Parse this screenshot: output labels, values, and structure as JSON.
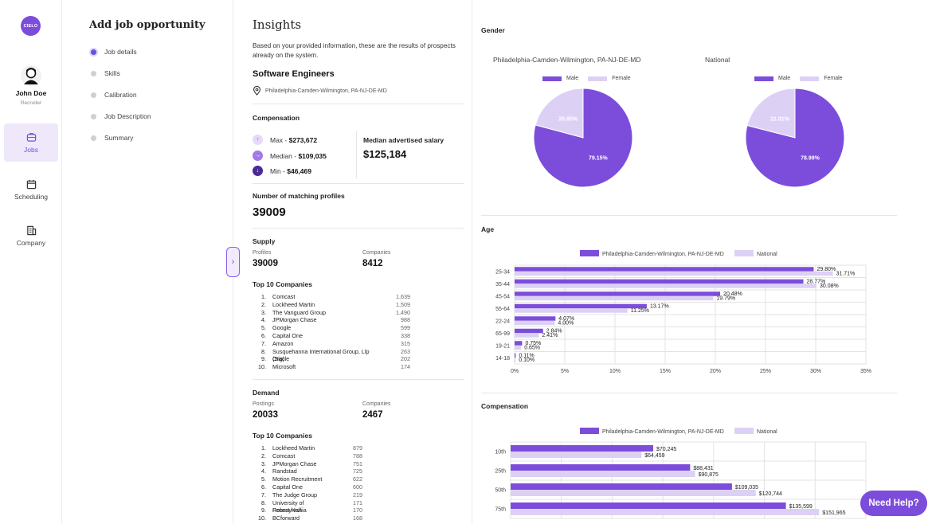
{
  "app": {
    "logo_text": "CIELO"
  },
  "user": {
    "name": "John Doe",
    "role": "Recruiter"
  },
  "nav": [
    {
      "label": "Jobs",
      "icon": "jobs-icon",
      "active": true
    },
    {
      "label": "Scheduling",
      "icon": "calendar-icon",
      "active": false
    },
    {
      "label": "Company",
      "icon": "building-icon",
      "active": false
    }
  ],
  "steps_panel": {
    "title": "Add job opportunity",
    "steps": [
      {
        "label": "Job details",
        "active": true
      },
      {
        "label": "Skills",
        "active": false
      },
      {
        "label": "Calibration",
        "active": false
      },
      {
        "label": "Job Description",
        "active": false
      },
      {
        "label": "Summary",
        "active": false
      }
    ]
  },
  "insights": {
    "title": "Insights",
    "description": "Based on your provided information, these are the results of prospects already on the system.",
    "job_title": "Software Engineers",
    "location": "Philadelphia-Camden-Wilmington, PA-NJ-DE-MD",
    "compensation": {
      "label": "Compensation",
      "max_label": "Max - ",
      "max_value": "$273,672",
      "median_label": "Median - ",
      "median_value": "$109,035",
      "min_label": "Min - ",
      "min_value": "$46,469",
      "median_adv_label": "Median advertised salary",
      "median_adv_value": "$125,184"
    },
    "matching": {
      "label": "Number of matching profiles",
      "value": "39009"
    },
    "supply": {
      "label": "Supply",
      "profiles_label": "Profiles",
      "profiles_value": "39009",
      "companies_label": "Companies",
      "companies_value": "8412",
      "top_label": "Top 10 Companies",
      "top": [
        {
          "n": "1.",
          "name": "Comcast",
          "count": "1,639"
        },
        {
          "n": "2.",
          "name": "Lockheed Martin",
          "count": "1,509"
        },
        {
          "n": "3.",
          "name": "The Vanguard Group",
          "count": "1,490"
        },
        {
          "n": "4.",
          "name": "JPMorgan Chase",
          "count": "988"
        },
        {
          "n": "5.",
          "name": "Google",
          "count": "599"
        },
        {
          "n": "6.",
          "name": "Capital One",
          "count": "338"
        },
        {
          "n": "7.",
          "name": "Amazon",
          "count": "315"
        },
        {
          "n": "8.",
          "name": "Susquehanna International Group, Llp (Sig)",
          "count": "263"
        },
        {
          "n": "9.",
          "name": "Oracle",
          "count": "202"
        },
        {
          "n": "10.",
          "name": "Microsoft",
          "count": "174"
        }
      ]
    },
    "demand": {
      "label": "Demand",
      "postings_label": "Postings",
      "postings_value": "20033",
      "companies_label": "Companies",
      "companies_value": "2467",
      "top_label": "Top 10 Companies",
      "top": [
        {
          "n": "1.",
          "name": "Lockheed Martin",
          "count": "879"
        },
        {
          "n": "2.",
          "name": "Comcast",
          "count": "788"
        },
        {
          "n": "3.",
          "name": "JPMorgan Chase",
          "count": "751"
        },
        {
          "n": "4.",
          "name": "Randstad",
          "count": "725"
        },
        {
          "n": "5.",
          "name": "Motion Recruitment",
          "count": "622"
        },
        {
          "n": "6.",
          "name": "Capital One",
          "count": "600"
        },
        {
          "n": "7.",
          "name": "The Judge Group",
          "count": "219"
        },
        {
          "n": "8.",
          "name": "University of Pennsylvania",
          "count": "171"
        },
        {
          "n": "9.",
          "name": "Robert Half",
          "count": "170"
        },
        {
          "n": "10.",
          "name": "BCforward",
          "count": "168"
        }
      ]
    }
  },
  "colors": {
    "accent": "#7c4ddb",
    "male": "#7c4ddb",
    "female": "#ddd0f5"
  },
  "chart_data": [
    {
      "type": "pie",
      "section": "Gender",
      "title": "Philadelphia-Camden-Wilmington, PA-NJ-DE-MD",
      "legend": [
        "Male",
        "Female"
      ],
      "slices": [
        {
          "label": "Male",
          "value": 79.15,
          "text": "79.15%"
        },
        {
          "label": "Female",
          "value": 20.85,
          "text": "20.85%"
        }
      ]
    },
    {
      "type": "pie",
      "title": "National",
      "legend": [
        "Male",
        "Female"
      ],
      "slices": [
        {
          "label": "Male",
          "value": 78.99,
          "text": "78.99%"
        },
        {
          "label": "Female",
          "value": 21.01,
          "text": "21.01%"
        }
      ]
    },
    {
      "type": "bar",
      "section": "Age",
      "orientation": "horizontal",
      "categories": [
        "25-34",
        "35-44",
        "45-54",
        "55-64",
        "22-24",
        "65-99",
        "19-21",
        "14-18"
      ],
      "series": [
        {
          "name": "Philadelphia-Camden-Wilmington, PA-NJ-DE-MD",
          "values": [
            29.8,
            28.77,
            20.48,
            13.17,
            4.07,
            2.84,
            0.75,
            0.11
          ],
          "labels": [
            "29.80%",
            "28.77%",
            "20.48%",
            "13.17%",
            "4.07%",
            "2.84%",
            "0.75%",
            "0.11%"
          ]
        },
        {
          "name": "National",
          "values": [
            31.71,
            30.08,
            19.79,
            11.25,
            4.0,
            2.41,
            0.65,
            0.1
          ],
          "labels": [
            "31.71%",
            "30.08%",
            "19.79%",
            "11.25%",
            "4.00%",
            "2.41%",
            "0.65%",
            "0.10%"
          ]
        }
      ],
      "xlim": [
        0,
        35
      ],
      "xticks": [
        "0%",
        "5%",
        "10%",
        "15%",
        "20%",
        "25%",
        "30%",
        "35%"
      ]
    },
    {
      "type": "bar",
      "section": "Compensation",
      "orientation": "horizontal",
      "categories": [
        "10th",
        "25th",
        "50th",
        "75th"
      ],
      "series": [
        {
          "name": "Philadelphia-Camden-Wilmington, PA-NJ-DE-MD",
          "values": [
            70245,
            88431,
            109035,
            135599
          ],
          "labels": [
            "$70,245",
            "$88,431",
            "$109,035",
            "$135,599"
          ]
        },
        {
          "name": "National",
          "values": [
            64459,
            90875,
            120744,
            151965
          ],
          "labels": [
            "$64,459",
            "$90,875",
            "$120,744",
            "$151,965"
          ]
        }
      ],
      "xlim": [
        0,
        175000
      ]
    }
  ],
  "help": {
    "label": "Need Help?"
  }
}
